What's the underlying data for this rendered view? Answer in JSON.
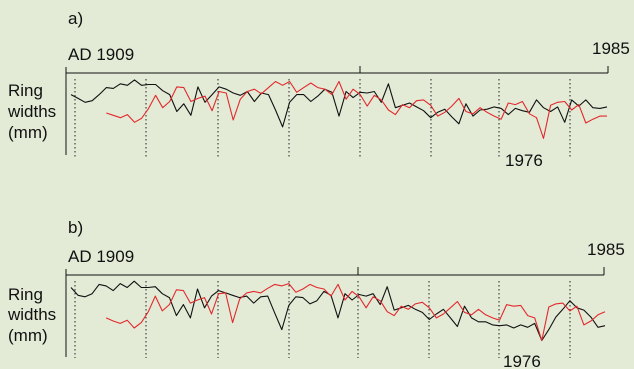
{
  "figure": {
    "background_color": "#e3ebd7"
  },
  "chart_data": [
    {
      "type": "line",
      "panel_label": "a)",
      "start_label": "AD 1909",
      "end_label": "1985",
      "ylabel_lines": [
        "Ring",
        "widths",
        "(mm)"
      ],
      "annotation": "1976",
      "xlim": [
        1909,
        1985
      ],
      "series": [
        {
          "color": "#111111",
          "x": [
            1909,
            1910,
            1911,
            1912,
            1913,
            1914,
            1915,
            1916,
            1917,
            1918,
            1919,
            1920,
            1921,
            1922,
            1923,
            1924,
            1925,
            1926,
            1927,
            1928,
            1929,
            1930,
            1931,
            1932,
            1933,
            1934,
            1935,
            1936,
            1937,
            1938,
            1939,
            1940,
            1941,
            1942,
            1943,
            1944,
            1945,
            1946,
            1947,
            1948,
            1949,
            1950,
            1951,
            1952,
            1953,
            1954,
            1955,
            1956,
            1957,
            1958,
            1959,
            1960,
            1961,
            1962,
            1963,
            1964,
            1965,
            1966,
            1967,
            1968,
            1969,
            1970,
            1971,
            1972,
            1973,
            1974,
            1975,
            1976,
            1977,
            1978,
            1979,
            1980,
            1981,
            1982,
            1983,
            1984,
            1985
          ],
          "values": [
            0.72,
            0.67,
            0.62,
            0.64,
            0.72,
            0.81,
            0.8,
            0.86,
            0.84,
            0.91,
            0.84,
            0.85,
            0.85,
            0.77,
            0.72,
            0.5,
            0.6,
            0.45,
            0.82,
            0.62,
            0.72,
            0.82,
            0.79,
            0.74,
            0.71,
            0.76,
            0.63,
            0.74,
            0.72,
            0.52,
            0.3,
            0.62,
            0.72,
            0.72,
            0.63,
            0.7,
            0.79,
            0.75,
            0.44,
            0.76,
            0.68,
            0.75,
            0.74,
            0.76,
            0.62,
            0.86,
            0.55,
            0.58,
            0.61,
            0.56,
            0.51,
            0.42,
            0.49,
            0.53,
            0.43,
            0.34,
            0.6,
            0.44,
            0.52,
            0.53,
            0.56,
            0.54,
            0.46,
            0.54,
            0.51,
            0.49,
            0.65,
            0.55,
            0.5,
            0.56,
            0.36,
            0.65,
            0.57,
            0.65,
            0.55,
            0.54,
            0.56
          ]
        },
        {
          "color": "#e3282c",
          "x": [
            1914,
            1915,
            1916,
            1917,
            1918,
            1919,
            1920,
            1921,
            1922,
            1923,
            1924,
            1925,
            1926,
            1927,
            1928,
            1929,
            1930,
            1931,
            1932,
            1933,
            1934,
            1935,
            1936,
            1937,
            1938,
            1939,
            1940,
            1941,
            1942,
            1943,
            1944,
            1945,
            1946,
            1947,
            1948,
            1949,
            1950,
            1951,
            1952,
            1953,
            1954,
            1955,
            1956,
            1957,
            1958,
            1959,
            1960,
            1961,
            1962,
            1963,
            1964,
            1965,
            1966,
            1967,
            1968,
            1969,
            1970,
            1971,
            1972,
            1973,
            1974,
            1975,
            1976,
            1977,
            1978,
            1979,
            1980,
            1981,
            1982,
            1983,
            1984,
            1985
          ],
          "values": [
            0.48,
            0.45,
            0.42,
            0.46,
            0.36,
            0.41,
            0.54,
            0.71,
            0.55,
            0.63,
            0.82,
            0.81,
            0.63,
            0.67,
            0.7,
            0.51,
            0.76,
            0.74,
            0.39,
            0.66,
            0.76,
            0.79,
            0.73,
            0.81,
            0.89,
            0.84,
            0.89,
            0.75,
            0.81,
            0.87,
            0.81,
            0.79,
            0.72,
            0.89,
            0.66,
            0.79,
            0.72,
            0.57,
            0.71,
            0.65,
            0.52,
            0.46,
            0.59,
            0.55,
            0.64,
            0.65,
            0.58,
            0.44,
            0.49,
            0.57,
            0.67,
            0.5,
            0.47,
            0.55,
            0.49,
            0.44,
            0.4,
            0.61,
            0.59,
            0.63,
            0.47,
            0.42,
            0.15,
            0.58,
            0.62,
            0.63,
            0.52,
            0.59,
            0.35,
            0.4,
            0.44,
            0.44
          ]
        }
      ]
    },
    {
      "type": "line",
      "panel_label": "b)",
      "start_label": "AD 1909",
      "end_label": "1985",
      "ylabel_lines": [
        "Ring",
        "widths",
        "(mm)"
      ],
      "annotation": "1976",
      "xlim": [
        1909,
        1985
      ],
      "series": [
        {
          "color": "#111111",
          "x": [
            1909,
            1910,
            1911,
            1912,
            1913,
            1914,
            1915,
            1916,
            1917,
            1918,
            1919,
            1920,
            1921,
            1922,
            1923,
            1924,
            1925,
            1926,
            1927,
            1928,
            1929,
            1930,
            1931,
            1932,
            1933,
            1934,
            1935,
            1936,
            1937,
            1938,
            1939,
            1940,
            1941,
            1942,
            1943,
            1944,
            1945,
            1946,
            1947,
            1948,
            1949,
            1950,
            1951,
            1952,
            1953,
            1954,
            1955,
            1956,
            1957,
            1958,
            1959,
            1960,
            1961,
            1962,
            1963,
            1964,
            1965,
            1966,
            1967,
            1968,
            1969,
            1970,
            1971,
            1972,
            1973,
            1974,
            1975,
            1976,
            1977,
            1978,
            1979,
            1980,
            1981,
            1982,
            1983,
            1984,
            1985
          ],
          "values": [
            0.84,
            0.74,
            0.72,
            0.76,
            0.88,
            0.86,
            0.8,
            0.89,
            0.84,
            0.92,
            0.84,
            0.84,
            0.85,
            0.76,
            0.71,
            0.48,
            0.62,
            0.45,
            0.82,
            0.58,
            0.73,
            0.8,
            0.77,
            0.74,
            0.71,
            0.73,
            0.64,
            0.72,
            0.73,
            0.51,
            0.3,
            0.61,
            0.72,
            0.71,
            0.63,
            0.67,
            0.79,
            0.74,
            0.45,
            0.76,
            0.68,
            0.75,
            0.73,
            0.76,
            0.62,
            0.85,
            0.55,
            0.58,
            0.61,
            0.56,
            0.52,
            0.43,
            0.5,
            0.56,
            0.45,
            0.34,
            0.6,
            0.45,
            0.4,
            0.4,
            0.36,
            0.35,
            0.36,
            0.32,
            0.36,
            0.33,
            0.38,
            0.16,
            0.3,
            0.46,
            0.56,
            0.67,
            0.58,
            0.55,
            0.46,
            0.33,
            0.35
          ]
        },
        {
          "color": "#e3282c",
          "x": [
            1914,
            1915,
            1916,
            1917,
            1918,
            1919,
            1920,
            1921,
            1922,
            1923,
            1924,
            1925,
            1926,
            1927,
            1928,
            1929,
            1930,
            1931,
            1932,
            1933,
            1934,
            1935,
            1936,
            1937,
            1938,
            1939,
            1940,
            1941,
            1942,
            1943,
            1944,
            1945,
            1946,
            1947,
            1948,
            1949,
            1950,
            1951,
            1952,
            1953,
            1954,
            1955,
            1956,
            1957,
            1958,
            1959,
            1960,
            1961,
            1962,
            1963,
            1964,
            1965,
            1966,
            1967,
            1968,
            1969,
            1970,
            1971,
            1972,
            1973,
            1974,
            1975,
            1976,
            1977,
            1978,
            1979,
            1980,
            1981,
            1982,
            1983,
            1984,
            1985
          ],
          "values": [
            0.45,
            0.41,
            0.38,
            0.42,
            0.32,
            0.39,
            0.53,
            0.73,
            0.54,
            0.62,
            0.81,
            0.8,
            0.64,
            0.68,
            0.71,
            0.5,
            0.76,
            0.77,
            0.39,
            0.69,
            0.77,
            0.79,
            0.77,
            0.83,
            0.88,
            0.86,
            0.89,
            0.78,
            0.82,
            0.88,
            0.84,
            0.82,
            0.73,
            0.88,
            0.68,
            0.79,
            0.72,
            0.58,
            0.72,
            0.67,
            0.53,
            0.48,
            0.6,
            0.56,
            0.63,
            0.65,
            0.58,
            0.45,
            0.5,
            0.58,
            0.66,
            0.52,
            0.49,
            0.56,
            0.49,
            0.45,
            0.42,
            0.62,
            0.6,
            0.61,
            0.48,
            0.45,
            0.16,
            0.59,
            0.63,
            0.64,
            0.54,
            0.6,
            0.36,
            0.41,
            0.49,
            0.53
          ]
        }
      ]
    }
  ]
}
